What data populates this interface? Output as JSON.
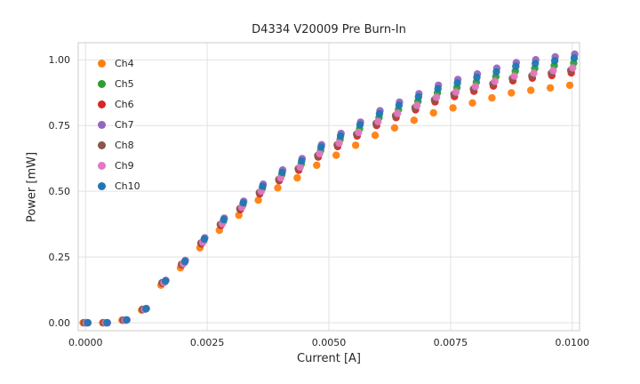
{
  "chart_data": {
    "type": "scatter",
    "title": "D4334 V20009 Pre Burn-In",
    "xlabel": "Current [A]",
    "ylabel": "Power [mW]",
    "grid": true,
    "legend_position": "upper left",
    "xlim": [
      -0.00015,
      0.01015
    ],
    "ylim": [
      -0.03,
      1.065
    ],
    "xticks": {
      "values": [
        0.0,
        0.0025,
        0.005,
        0.0075,
        0.01
      ],
      "labels": [
        "0.0000",
        "0.0025",
        "0.0050",
        "0.0075",
        "0.0100"
      ]
    },
    "yticks": {
      "values": [
        0.0,
        0.25,
        0.5,
        0.75,
        1.0
      ],
      "labels": [
        "0.00",
        "0.25",
        "0.50",
        "0.75",
        "1.00"
      ]
    },
    "marker_radius": 4.2,
    "grid_color": "#e2e2e2",
    "spine_color": "#d4d4d4",
    "text_color": "#262626",
    "x": [
      0.0,
      0.0004,
      0.0008,
      0.0012,
      0.0016,
      0.002,
      0.0024,
      0.0028,
      0.0032,
      0.0036,
      0.004,
      0.0044,
      0.0048,
      0.0052,
      0.0056,
      0.006,
      0.0064,
      0.0068,
      0.0072,
      0.0076,
      0.008,
      0.0084,
      0.0088,
      0.0092,
      0.0096,
      0.01
    ],
    "series": [
      {
        "name": "Ch4",
        "color": "#ff7f0e",
        "x_offset": -5e-05,
        "y": [
          0,
          0,
          0.01,
          0.048,
          0.143,
          0.209,
          0.285,
          0.352,
          0.409,
          0.466,
          0.513,
          0.551,
          0.599,
          0.637,
          0.675,
          0.713,
          0.741,
          0.77,
          0.798,
          0.817,
          0.836,
          0.855,
          0.874,
          0.884,
          0.893,
          0.903
        ]
      },
      {
        "name": "Ch5",
        "color": "#2ca02c",
        "x_offset": 3e-05,
        "y": [
          0,
          0,
          0.01,
          0.052,
          0.156,
          0.229,
          0.312,
          0.385,
          0.447,
          0.51,
          0.562,
          0.603,
          0.655,
          0.697,
          0.738,
          0.78,
          0.811,
          0.842,
          0.874,
          0.894,
          0.915,
          0.936,
          0.957,
          0.967,
          0.978,
          0.988
        ]
      },
      {
        "name": "Ch6",
        "color": "#d62728",
        "x_offset": -2e-05,
        "y": [
          0,
          0,
          0.01,
          0.05,
          0.15,
          0.22,
          0.3,
          0.37,
          0.43,
          0.49,
          0.54,
          0.58,
          0.63,
          0.67,
          0.71,
          0.75,
          0.78,
          0.81,
          0.84,
          0.86,
          0.88,
          0.9,
          0.92,
          0.93,
          0.94,
          0.95
        ]
      },
      {
        "name": "Ch7",
        "color": "#9467bd",
        "x_offset": 5e-05,
        "y": [
          0,
          0,
          0.011,
          0.054,
          0.161,
          0.237,
          0.323,
          0.398,
          0.462,
          0.527,
          0.581,
          0.624,
          0.677,
          0.72,
          0.763,
          0.806,
          0.839,
          0.871,
          0.903,
          0.925,
          0.946,
          0.968,
          0.989,
          1.0,
          1.011,
          1.021
        ]
      },
      {
        "name": "Ch8",
        "color": "#8c564b",
        "x_offset": -3e-05,
        "y": [
          0,
          0,
          0.01,
          0.051,
          0.152,
          0.222,
          0.303,
          0.374,
          0.434,
          0.495,
          0.545,
          0.586,
          0.636,
          0.677,
          0.717,
          0.758,
          0.788,
          0.818,
          0.848,
          0.869,
          0.889,
          0.909,
          0.929,
          0.939,
          0.949,
          0.96
        ]
      },
      {
        "name": "Ch9",
        "color": "#e377c2",
        "x_offset": 1e-05,
        "y": [
          0,
          0,
          0.01,
          0.051,
          0.153,
          0.224,
          0.306,
          0.377,
          0.439,
          0.5,
          0.551,
          0.592,
          0.643,
          0.683,
          0.724,
          0.765,
          0.796,
          0.826,
          0.857,
          0.877,
          0.898,
          0.918,
          0.938,
          0.949,
          0.959,
          0.969
        ]
      },
      {
        "name": "Ch10",
        "color": "#1f77b4",
        "x_offset": 4e-05,
        "y": [
          0,
          0,
          0.011,
          0.053,
          0.159,
          0.233,
          0.318,
          0.392,
          0.456,
          0.519,
          0.572,
          0.615,
          0.668,
          0.71,
          0.753,
          0.795,
          0.827,
          0.859,
          0.89,
          0.912,
          0.933,
          0.954,
          0.975,
          0.986,
          0.996,
          1.007
        ]
      }
    ]
  }
}
